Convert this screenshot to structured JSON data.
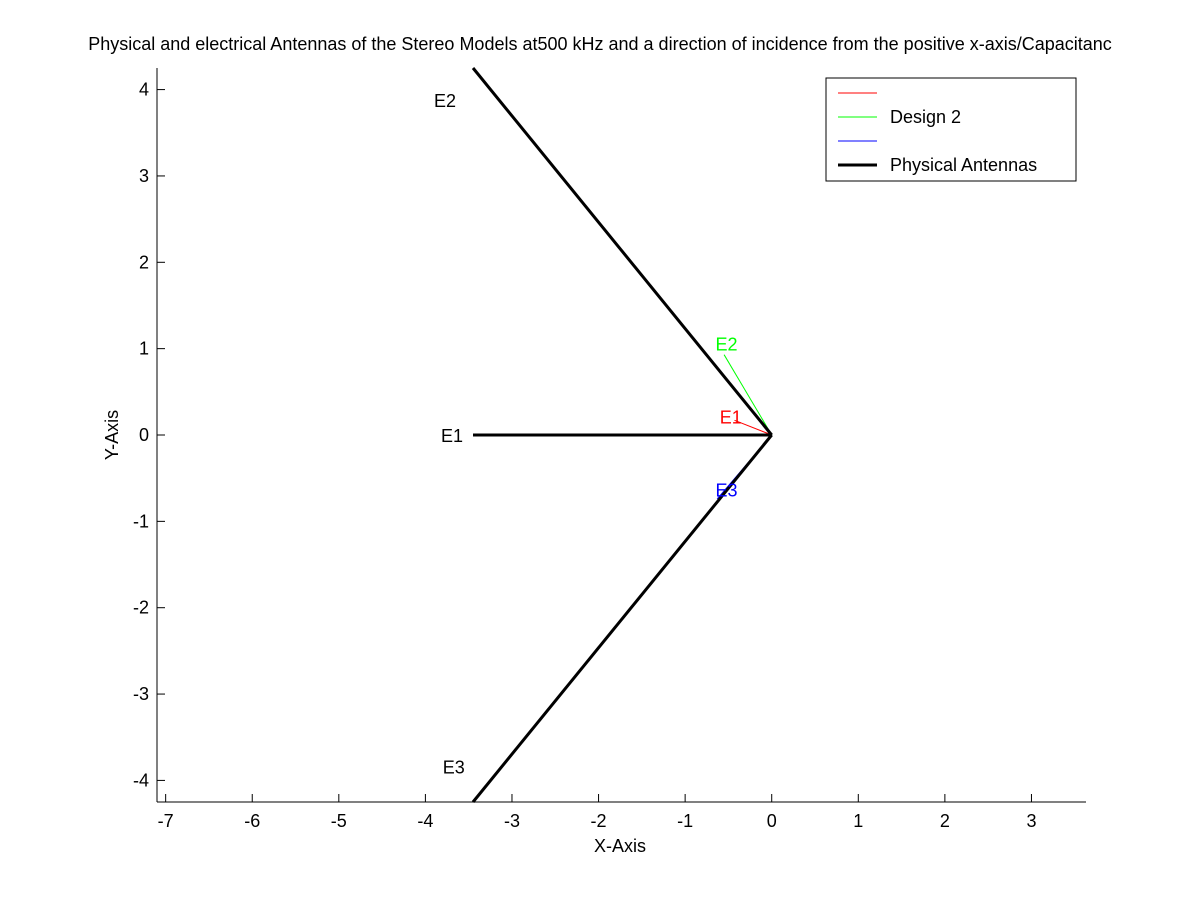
{
  "chart_data": {
    "type": "line",
    "title": "Physical and electrical Antennas of the Stereo Models at500 kHz and a direction of incidence from the positive x-axis/Capacitanc",
    "xlabel": "X-Axis",
    "ylabel": "Y-Axis",
    "xlim": [
      -7.1,
      3.63
    ],
    "ylim": [
      -4.25,
      4.25
    ],
    "xticks": [
      -7,
      -6,
      -5,
      -4,
      -3,
      -2,
      -1,
      0,
      1,
      2,
      3
    ],
    "yticks": [
      -4,
      -3,
      -2,
      -1,
      0,
      1,
      2,
      3,
      4
    ],
    "xtick_labels": [
      "-7",
      "-6",
      "-5",
      "-4",
      "-3",
      "-2",
      "-1",
      "0",
      "1",
      "2",
      "3"
    ],
    "ytick_labels": [
      "-4",
      "-3",
      "-2",
      "-1",
      "0",
      "1",
      "2",
      "3",
      "4"
    ],
    "grid": false,
    "legend": {
      "position": "top-right",
      "entries": [
        {
          "label": "",
          "color": "#ff0000",
          "width": 1
        },
        {
          "label": "Design 2",
          "color": "#00ff00",
          "width": 1
        },
        {
          "label": "",
          "color": "#0000ff",
          "width": 1
        },
        {
          "label": "Physical Antennas",
          "color": "#000000",
          "width": 3
        }
      ]
    },
    "series": [
      {
        "color": "#ff0000",
        "width": 1,
        "segments": [
          [
            [
              0,
              0
            ],
            [
              -0.43,
              0.17
            ]
          ]
        ]
      },
      {
        "name": "Design 2",
        "color": "#00ff00",
        "width": 1,
        "segments": [
          [
            [
              0,
              0
            ],
            [
              -0.55,
              0.93
            ]
          ]
        ]
      },
      {
        "color": "#0000ff",
        "width": 1,
        "segments": [
          [
            [
              0,
              0
            ],
            [
              -0.63,
              -0.74
            ]
          ]
        ]
      },
      {
        "name": "Physical Antennas",
        "color": "#000000",
        "width": 3,
        "segments": [
          [
            [
              0,
              0
            ],
            [
              -3.45,
              0
            ]
          ],
          [
            [
              0,
              0
            ],
            [
              -3.45,
              4.25
            ]
          ],
          [
            [
              0,
              0
            ],
            [
              -3.45,
              -4.25
            ]
          ]
        ]
      }
    ],
    "annotations": [
      {
        "text": "E2",
        "x": -3.9,
        "y": 3.87,
        "color": "#000000"
      },
      {
        "text": "E1",
        "x": -3.82,
        "y": -0.01,
        "color": "#000000"
      },
      {
        "text": "E3",
        "x": -3.8,
        "y": -3.85,
        "color": "#000000"
      },
      {
        "text": "E2",
        "x": -0.65,
        "y": 1.05,
        "color": "#00ff00"
      },
      {
        "text": "E1",
        "x": -0.6,
        "y": 0.2,
        "color": "#ff0000"
      },
      {
        "text": "E3",
        "x": -0.65,
        "y": -0.64,
        "color": "#0000ff"
      }
    ]
  }
}
